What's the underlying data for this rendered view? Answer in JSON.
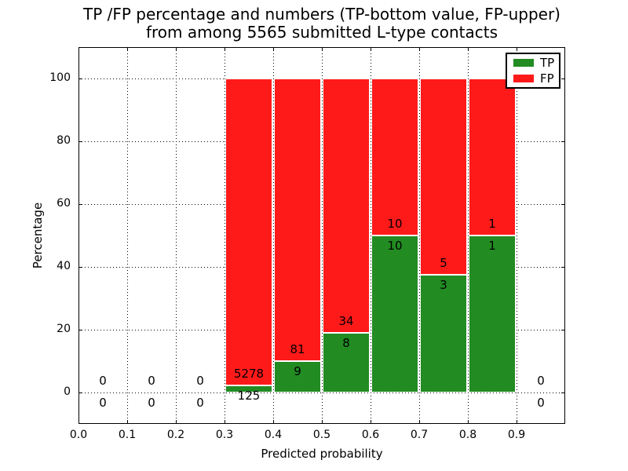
{
  "chart_data": {
    "type": "bar",
    "subtype": "stacked-percentage-histogram",
    "title_line1": "TP /FP percentage and numbers (TP-bottom value, FP-upper)",
    "title_line2": "from among 5565 submitted L-type contacts",
    "xlabel": "Predicted probability",
    "ylabel": "Percentage",
    "xlim": [
      0.0,
      1.0
    ],
    "ylim": [
      -10,
      110
    ],
    "xticks": [
      "0.0",
      "0.1",
      "0.2",
      "0.3",
      "0.4",
      "0.5",
      "0.6",
      "0.7",
      "0.8",
      "0.9"
    ],
    "yticks": [
      0,
      20,
      40,
      60,
      80,
      100
    ],
    "grid": "dotted-both-axes",
    "colors": {
      "tp": "#228B22",
      "fp": "#FF1A1A",
      "edge": "#FFFFFF",
      "axis": "#000000"
    },
    "legend": [
      {
        "label": "TP",
        "color": "#228B22"
      },
      {
        "label": "FP",
        "color": "#FF1A1A"
      }
    ],
    "legend_position": "upper-right",
    "annotation_note": "TP count below segment boundary, FP count above; empty bins annotated 0/0",
    "bins": [
      {
        "x0": 0.0,
        "x1": 0.1,
        "tp": 0,
        "fp": 0,
        "tp_pct": 0
      },
      {
        "x0": 0.1,
        "x1": 0.2,
        "tp": 0,
        "fp": 0,
        "tp_pct": 0
      },
      {
        "x0": 0.2,
        "x1": 0.3,
        "tp": 0,
        "fp": 0,
        "tp_pct": 0
      },
      {
        "x0": 0.3,
        "x1": 0.4,
        "tp": 125,
        "fp": 5278,
        "tp_pct": 2.3
      },
      {
        "x0": 0.4,
        "x1": 0.5,
        "tp": 9,
        "fp": 81,
        "tp_pct": 10
      },
      {
        "x0": 0.5,
        "x1": 0.6,
        "tp": 8,
        "fp": 34,
        "tp_pct": 19
      },
      {
        "x0": 0.6,
        "x1": 0.7,
        "tp": 10,
        "fp": 10,
        "tp_pct": 50
      },
      {
        "x0": 0.7,
        "x1": 0.8,
        "tp": 3,
        "fp": 5,
        "tp_pct": 37.5
      },
      {
        "x0": 0.8,
        "x1": 0.9,
        "tp": 1,
        "fp": 1,
        "tp_pct": 50
      },
      {
        "x0": 0.9,
        "x1": 1.0,
        "tp": 0,
        "fp": 0,
        "tp_pct": 0
      }
    ]
  }
}
